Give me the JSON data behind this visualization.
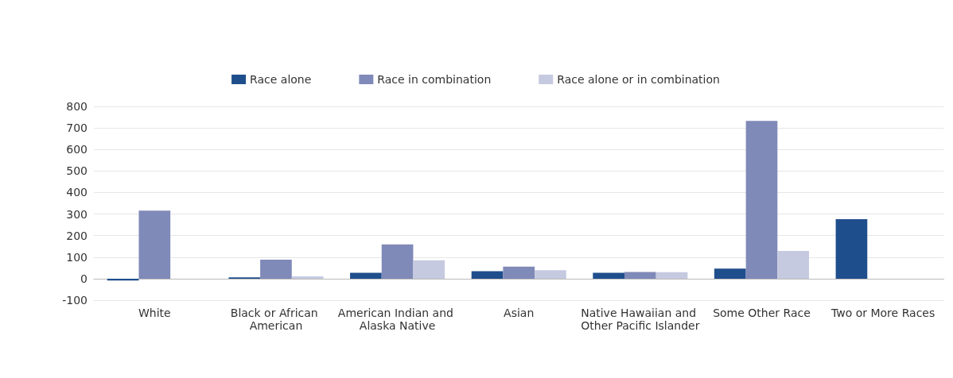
{
  "chart_data": {
    "type": "bar",
    "categories": [
      "White",
      "Black or African American",
      "American Indian and Alaska Native",
      "Asian",
      "Native Hawaiian and Other Pacific Islander",
      "Some Other Race",
      "Two or More Races"
    ],
    "series": [
      {
        "name": "Race alone",
        "color": "#1f4e8c",
        "values": [
          -9,
          6,
          27,
          35,
          27,
          47,
          276
        ]
      },
      {
        "name": "Race in combination",
        "color": "#808ab8",
        "values": [
          316,
          88,
          159,
          56,
          31,
          733,
          null
        ]
      },
      {
        "name": "Race alone or in combination",
        "color": "#c6cae0",
        "values": [
          null,
          11,
          85,
          39,
          30,
          129,
          null
        ]
      }
    ],
    "ylim": [
      -100,
      800
    ],
    "yticks": [
      -100,
      0,
      100,
      200,
      300,
      400,
      500,
      600,
      700,
      800
    ],
    "grid": "y",
    "legend": "top"
  }
}
